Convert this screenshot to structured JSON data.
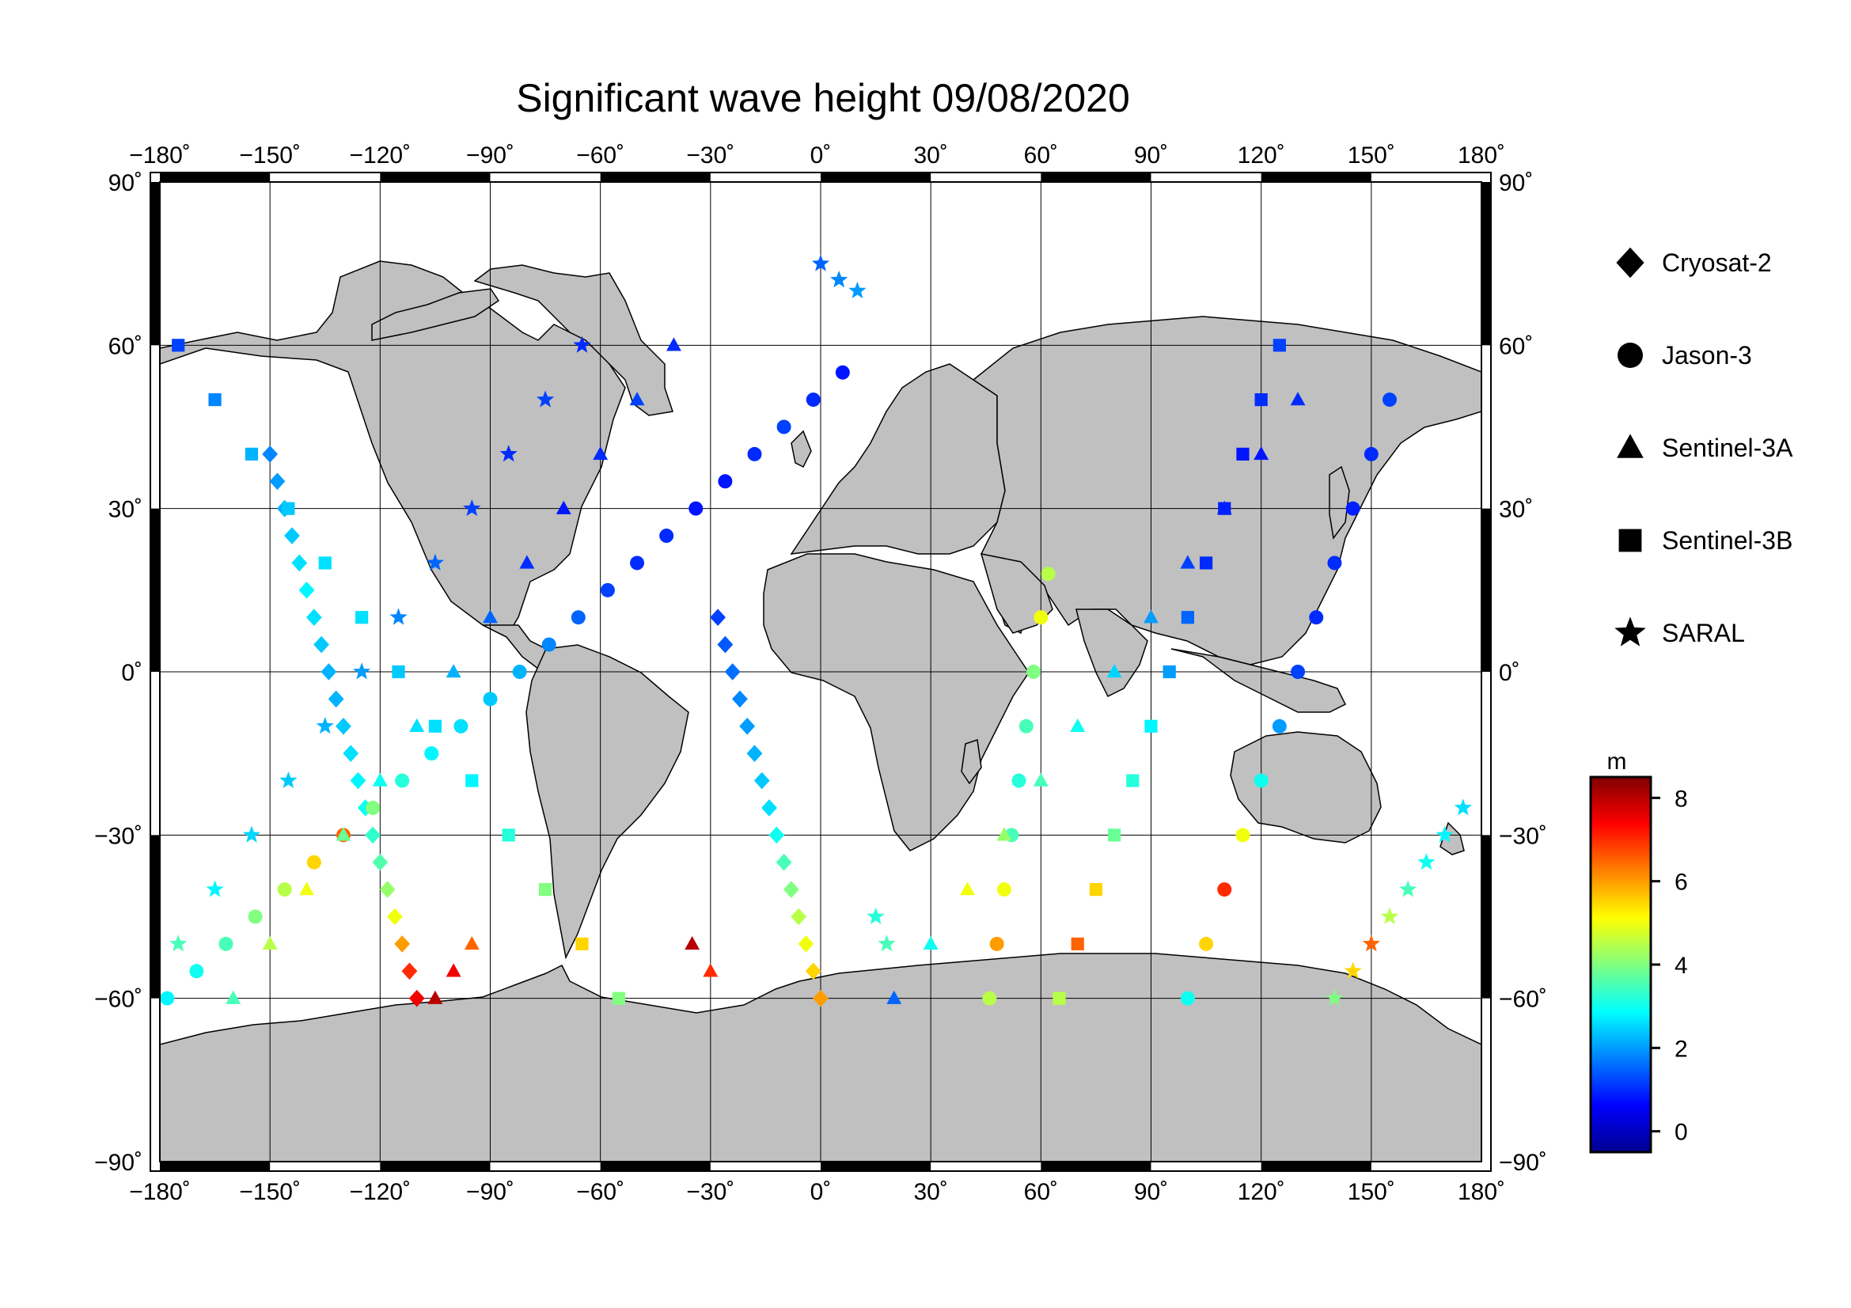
{
  "title": "Significant wave height 09/08/2020",
  "map": {
    "lon_ticks": [
      "−180˚",
      "−150˚",
      "−120˚",
      "−90˚",
      "−60˚",
      "−30˚",
      "0˚",
      "30˚",
      "60˚",
      "90˚",
      "120˚",
      "150˚",
      "180˚"
    ],
    "lat_ticks_left": [
      "90˚",
      "60˚",
      "30˚",
      "0˚",
      "−30˚",
      "−60˚",
      "−90˚"
    ],
    "lat_ticks_right": [
      "90˚",
      "60˚",
      "30˚",
      "0˚",
      "−30˚",
      "−60˚",
      "−90˚"
    ],
    "land_color": "#c0c0c0",
    "ocean_color": "#ffffff"
  },
  "legend": {
    "items": [
      {
        "label": "Cryosat-2",
        "marker": "diamond"
      },
      {
        "label": "Jason-3",
        "marker": "circle"
      },
      {
        "label": "Sentinel-3A",
        "marker": "triangle"
      },
      {
        "label": "Sentinel-3B",
        "marker": "square"
      },
      {
        "label": "SARAL",
        "marker": "star"
      }
    ]
  },
  "colorbar": {
    "unit": "m",
    "ticks": [
      "8",
      "6",
      "4",
      "2",
      "0"
    ],
    "stops": [
      "#00008f",
      "#0000ff",
      "#0080ff",
      "#00ffff",
      "#80ff80",
      "#ffff00",
      "#ff8000",
      "#ff0000",
      "#800000"
    ]
  },
  "chart_data": {
    "type": "scatter",
    "xlim": [
      -180,
      180
    ],
    "ylim": [
      -90,
      90
    ],
    "color_range_m": [
      -0.5,
      8.5
    ],
    "series": [
      {
        "name": "Cryosat-2",
        "points": [
          [
            -150,
            40,
            1.8
          ],
          [
            -148,
            35,
            2.0
          ],
          [
            -146,
            30,
            2.2
          ],
          [
            -144,
            25,
            2.4
          ],
          [
            -142,
            20,
            2.6
          ],
          [
            -140,
            15,
            2.8
          ],
          [
            -138,
            10,
            2.6
          ],
          [
            -136,
            5,
            2.4
          ],
          [
            -134,
            0,
            2.2
          ],
          [
            -132,
            -5,
            2.2
          ],
          [
            -130,
            -10,
            2.4
          ],
          [
            -128,
            -15,
            2.6
          ],
          [
            -126,
            -20,
            2.8
          ],
          [
            -124,
            -25,
            3.0
          ],
          [
            -122,
            -30,
            3.3
          ],
          [
            -120,
            -35,
            3.6
          ],
          [
            -118,
            -40,
            4.2
          ],
          [
            -116,
            -45,
            5.0
          ],
          [
            -114,
            -50,
            6.0
          ],
          [
            -112,
            -55,
            7.0
          ],
          [
            -110,
            -60,
            7.5
          ],
          [
            -28,
            10,
            1.2
          ],
          [
            -26,
            5,
            1.4
          ],
          [
            -24,
            0,
            1.6
          ],
          [
            -22,
            -5,
            1.8
          ],
          [
            -20,
            -10,
            2.0
          ],
          [
            -18,
            -15,
            2.2
          ],
          [
            -16,
            -20,
            2.4
          ],
          [
            -14,
            -25,
            2.6
          ],
          [
            -12,
            -30,
            3.0
          ],
          [
            -10,
            -35,
            3.5
          ],
          [
            -8,
            -40,
            4.0
          ],
          [
            -6,
            -45,
            4.5
          ],
          [
            -4,
            -50,
            5.0
          ],
          [
            -2,
            -55,
            5.5
          ],
          [
            0,
            -60,
            6.0
          ]
        ]
      },
      {
        "name": "Jason-3",
        "points": [
          [
            -178,
            -60,
            2.8
          ],
          [
            -170,
            -55,
            3.0
          ],
          [
            -162,
            -50,
            3.5
          ],
          [
            -154,
            -45,
            4.0
          ],
          [
            -146,
            -40,
            4.5
          ],
          [
            -138,
            -35,
            5.5
          ],
          [
            -130,
            -30,
            6.5
          ],
          [
            -122,
            -25,
            4.0
          ],
          [
            -114,
            -20,
            3.2
          ],
          [
            -106,
            -15,
            2.8
          ],
          [
            -98,
            -10,
            2.6
          ],
          [
            -90,
            -5,
            2.4
          ],
          [
            -82,
            0,
            2.2
          ],
          [
            -74,
            5,
            1.8
          ],
          [
            -66,
            10,
            1.5
          ],
          [
            -58,
            15,
            1.2
          ],
          [
            -50,
            20,
            1.0
          ],
          [
            -42,
            25,
            1.0
          ],
          [
            -34,
            30,
            0.8
          ],
          [
            -26,
            35,
            0.8
          ],
          [
            -18,
            40,
            1.0
          ],
          [
            -10,
            45,
            1.2
          ],
          [
            -2,
            50,
            1.0
          ],
          [
            6,
            55,
            0.8
          ],
          [
            62,
            18,
            4.5
          ],
          [
            60,
            10,
            5.0
          ],
          [
            58,
            0,
            4.0
          ],
          [
            56,
            -10,
            3.5
          ],
          [
            54,
            -20,
            3.2
          ],
          [
            52,
            -30,
            3.5
          ],
          [
            50,
            -40,
            5.0
          ],
          [
            48,
            -50,
            6.0
          ],
          [
            46,
            -60,
            4.5
          ],
          [
            100,
            -60,
            3.0
          ],
          [
            105,
            -50,
            5.5
          ],
          [
            110,
            -40,
            7.0
          ],
          [
            115,
            -30,
            5.0
          ],
          [
            120,
            -20,
            3.0
          ],
          [
            125,
            -10,
            2.0
          ],
          [
            130,
            0,
            1.2
          ],
          [
            135,
            10,
            1.0
          ],
          [
            140,
            20,
            1.0
          ],
          [
            145,
            30,
            0.9
          ],
          [
            150,
            40,
            1.0
          ],
          [
            155,
            50,
            1.2
          ]
        ]
      },
      {
        "name": "Sentinel-3A",
        "points": [
          [
            -160,
            -60,
            3.5
          ],
          [
            -150,
            -50,
            4.5
          ],
          [
            -140,
            -40,
            5.0
          ],
          [
            -130,
            -30,
            3.8
          ],
          [
            -120,
            -20,
            3.0
          ],
          [
            -110,
            -10,
            2.6
          ],
          [
            -100,
            0,
            2.2
          ],
          [
            -90,
            10,
            1.5
          ],
          [
            -80,
            20,
            1.0
          ],
          [
            -70,
            30,
            0.8
          ],
          [
            -60,
            40,
            1.0
          ],
          [
            -50,
            50,
            1.2
          ],
          [
            -40,
            60,
            1.0
          ],
          [
            20,
            -60,
            1.5
          ],
          [
            30,
            -50,
            3.0
          ],
          [
            40,
            -40,
            5.0
          ],
          [
            50,
            -30,
            4.2
          ],
          [
            60,
            -20,
            3.5
          ],
          [
            70,
            -10,
            3.0
          ],
          [
            80,
            0,
            2.5
          ],
          [
            90,
            10,
            2.0
          ],
          [
            100,
            20,
            1.2
          ],
          [
            110,
            30,
            1.0
          ],
          [
            120,
            40,
            0.8
          ],
          [
            130,
            50,
            1.0
          ],
          [
            -105,
            -60,
            8.0
          ],
          [
            -100,
            -55,
            7.5
          ],
          [
            -95,
            -50,
            6.5
          ],
          [
            -35,
            -50,
            8.0
          ],
          [
            -30,
            -55,
            7.0
          ]
        ]
      },
      {
        "name": "Sentinel-3B",
        "points": [
          [
            -175,
            60,
            1.2
          ],
          [
            -165,
            50,
            1.8
          ],
          [
            -155,
            40,
            2.2
          ],
          [
            -145,
            30,
            2.4
          ],
          [
            -135,
            20,
            2.6
          ],
          [
            -125,
            10,
            2.6
          ],
          [
            -115,
            0,
            2.4
          ],
          [
            -105,
            -10,
            2.6
          ],
          [
            -95,
            -20,
            2.8
          ],
          [
            -85,
            -30,
            3.2
          ],
          [
            -75,
            -40,
            4.0
          ],
          [
            -65,
            -50,
            5.5
          ],
          [
            -55,
            -60,
            4.0
          ],
          [
            65,
            -60,
            4.5
          ],
          [
            70,
            -50,
            6.5
          ],
          [
            75,
            -40,
            5.5
          ],
          [
            80,
            -30,
            3.8
          ],
          [
            85,
            -20,
            3.2
          ],
          [
            90,
            -10,
            2.8
          ],
          [
            95,
            0,
            2.0
          ],
          [
            100,
            10,
            1.5
          ],
          [
            105,
            20,
            1.0
          ],
          [
            110,
            30,
            0.9
          ],
          [
            115,
            40,
            0.8
          ],
          [
            120,
            50,
            1.0
          ],
          [
            125,
            60,
            1.2
          ]
        ]
      },
      {
        "name": "SARAL",
        "points": [
          [
            -175,
            -50,
            3.5
          ],
          [
            -165,
            -40,
            2.8
          ],
          [
            -155,
            -30,
            2.5
          ],
          [
            -145,
            -20,
            2.4
          ],
          [
            -135,
            -10,
            2.2
          ],
          [
            -125,
            0,
            2.0
          ],
          [
            -115,
            10,
            1.8
          ],
          [
            -105,
            20,
            1.5
          ],
          [
            -95,
            30,
            1.2
          ],
          [
            -85,
            40,
            1.0
          ],
          [
            -75,
            50,
            1.2
          ],
          [
            -65,
            60,
            1.0
          ],
          [
            0,
            75,
            1.5
          ],
          [
            5,
            72,
            1.8
          ],
          [
            10,
            70,
            2.0
          ],
          [
            15,
            -45,
            3.2
          ],
          [
            18,
            -50,
            3.5
          ],
          [
            140,
            -60,
            4.0
          ],
          [
            145,
            -55,
            5.5
          ],
          [
            150,
            -50,
            6.5
          ],
          [
            155,
            -45,
            4.5
          ],
          [
            160,
            -40,
            3.5
          ],
          [
            165,
            -35,
            3.0
          ],
          [
            170,
            -30,
            2.8
          ],
          [
            175,
            -25,
            2.6
          ]
        ]
      }
    ]
  }
}
